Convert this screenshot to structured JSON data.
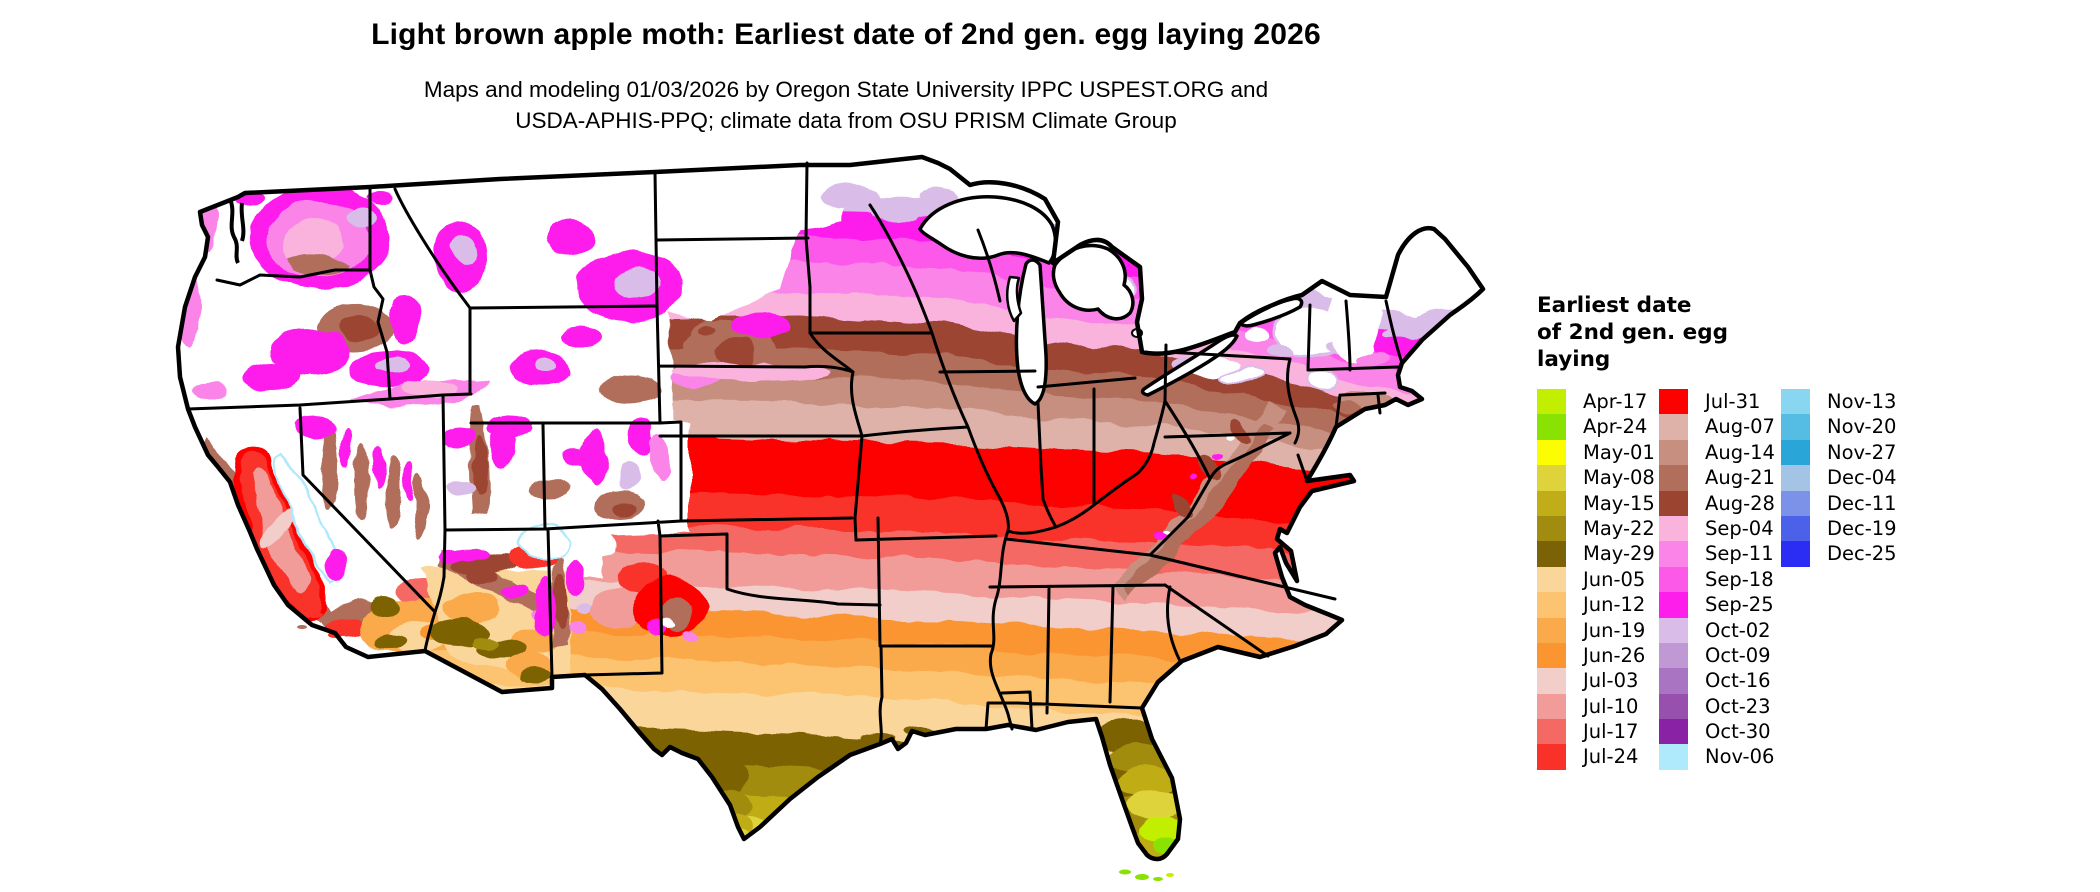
{
  "title": "Light brown apple moth: Earliest date of 2nd gen. egg laying 2026",
  "subtitle_lines": [
    "Maps and modeling 01/03/2026 by Oregon State University IPPC USPEST.ORG and",
    "USDA-APHIS-PPQ; climate data from OSU PRISM Climate Group"
  ],
  "legend": {
    "title_lines": [
      "Earliest date",
      "of 2nd gen. egg",
      "laying"
    ],
    "columns": [
      [
        {
          "label": "Apr-17",
          "color": "#c2ef00"
        },
        {
          "label": "Apr-24",
          "color": "#8ae203"
        },
        {
          "label": "May-01",
          "color": "#fdfd01"
        },
        {
          "label": "May-08",
          "color": "#ded33b"
        },
        {
          "label": "May-15",
          "color": "#c0ad18"
        },
        {
          "label": "May-22",
          "color": "#a18c10"
        },
        {
          "label": "May-29",
          "color": "#7c6206"
        },
        {
          "label": "Jun-05",
          "color": "#fbd69a"
        },
        {
          "label": "Jun-12",
          "color": "#fcc370"
        },
        {
          "label": "Jun-19",
          "color": "#fbaa4b"
        },
        {
          "label": "Jun-26",
          "color": "#fa9530"
        },
        {
          "label": "Jul-03",
          "color": "#f2cecb"
        },
        {
          "label": "Jul-10",
          "color": "#f19c99"
        },
        {
          "label": "Jul-17",
          "color": "#f46963"
        },
        {
          "label": "Jul-24",
          "color": "#f93129"
        }
      ],
      [
        {
          "label": "Jul-31",
          "color": "#fd0100"
        },
        {
          "label": "Aug-07",
          "color": "#deb2a9"
        },
        {
          "label": "Aug-14",
          "color": "#c68f80"
        },
        {
          "label": "Aug-21",
          "color": "#b16e5a"
        },
        {
          "label": "Aug-28",
          "color": "#9b4530"
        },
        {
          "label": "Sep-04",
          "color": "#fab3dc"
        },
        {
          "label": "Sep-11",
          "color": "#fb84e9"
        },
        {
          "label": "Sep-18",
          "color": "#fc59e9"
        },
        {
          "label": "Sep-25",
          "color": "#fd1eec"
        },
        {
          "label": "Oct-02",
          "color": "#d9bde8"
        },
        {
          "label": "Oct-09",
          "color": "#c098d4"
        },
        {
          "label": "Oct-16",
          "color": "#a974c2"
        },
        {
          "label": "Oct-23",
          "color": "#9850af"
        },
        {
          "label": "Oct-30",
          "color": "#8a22a5"
        },
        {
          "label": "Nov-06",
          "color": "#aeeafb"
        }
      ],
      [
        {
          "label": "Nov-13",
          "color": "#88d6ef"
        },
        {
          "label": "Nov-20",
          "color": "#55bde4"
        },
        {
          "label": "Nov-27",
          "color": "#2aa5d8"
        },
        {
          "label": "Dec-04",
          "color": "#a4c4e5"
        },
        {
          "label": "Dec-11",
          "color": "#7b92e8"
        },
        {
          "label": "Dec-19",
          "color": "#4c61e9"
        },
        {
          "label": "Dec-25",
          "color": "#2b2cf4"
        }
      ]
    ]
  }
}
